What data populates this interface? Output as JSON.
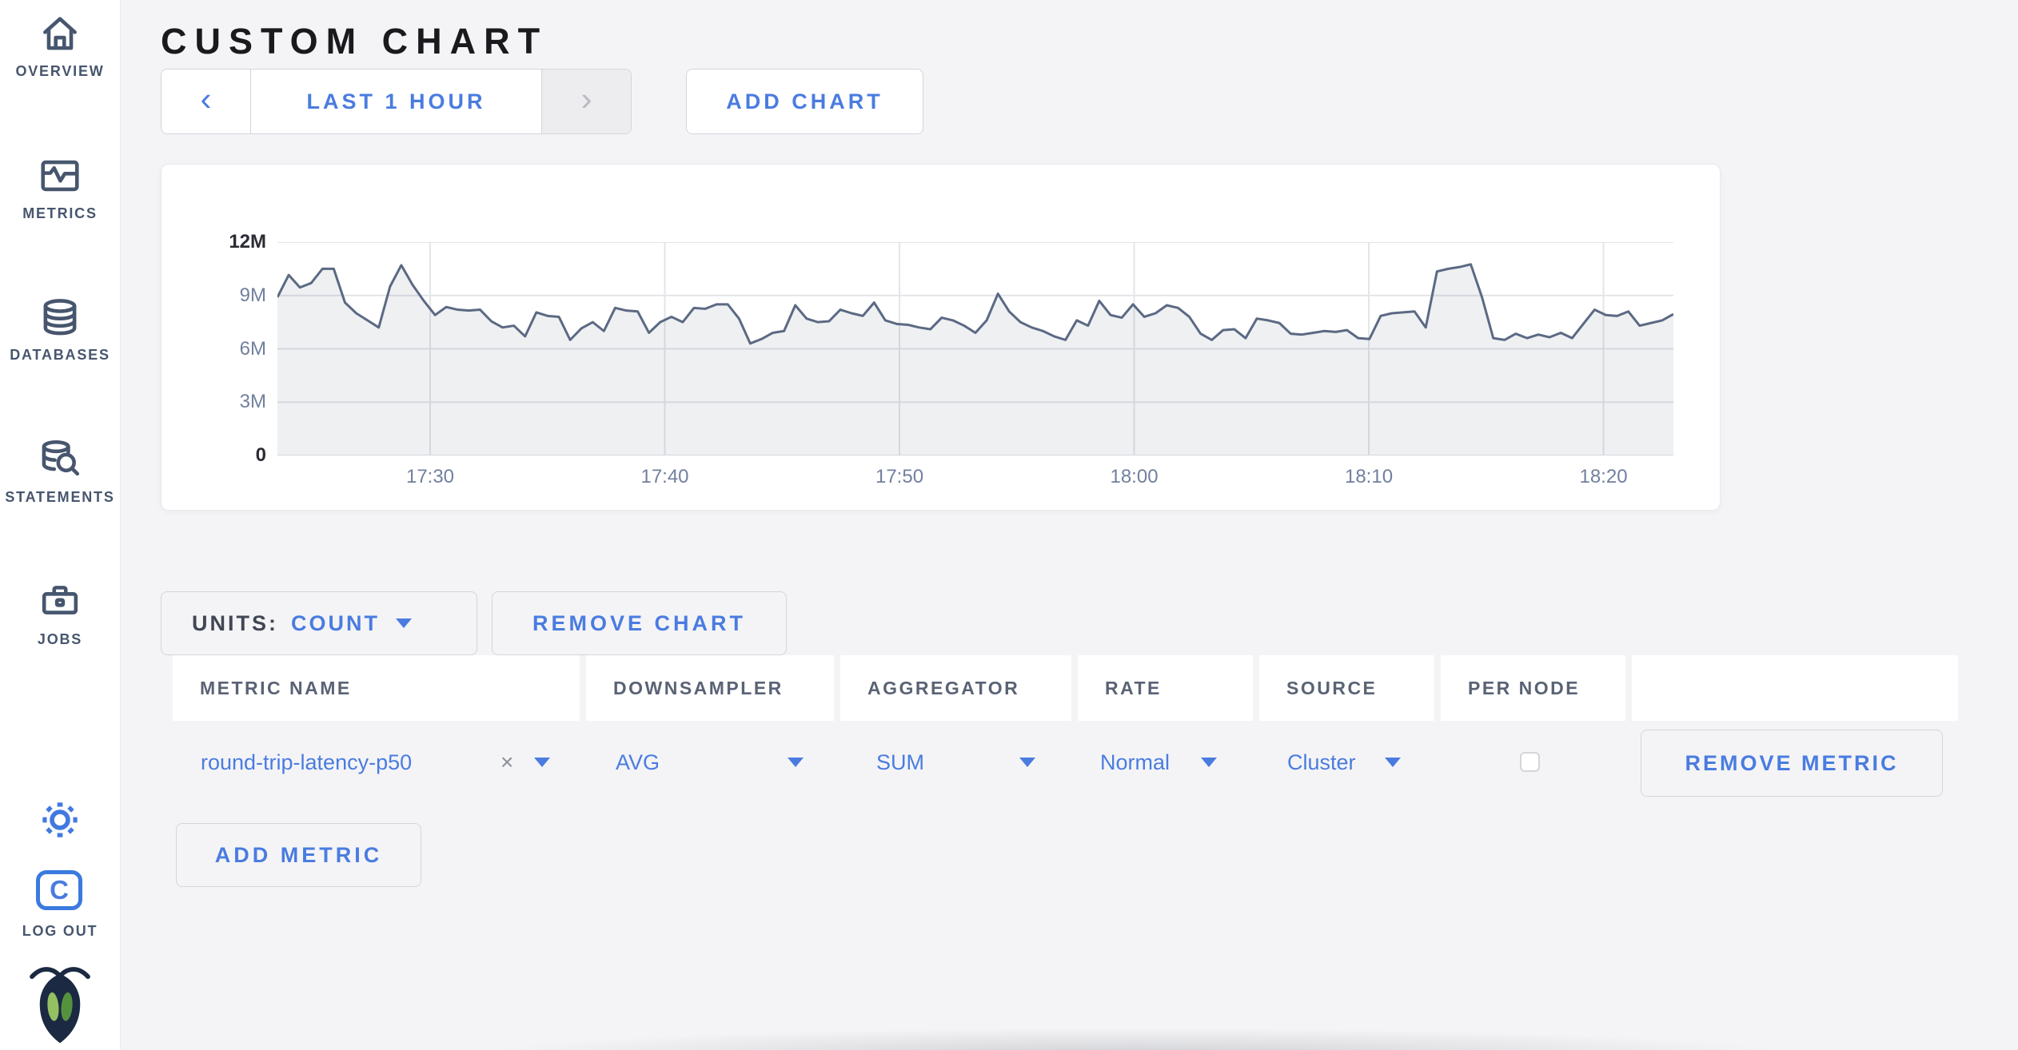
{
  "page": {
    "title": "CUSTOM CHART"
  },
  "sidebar": {
    "items": [
      {
        "label": "OVERVIEW",
        "icon": "home-icon"
      },
      {
        "label": "METRICS",
        "icon": "metrics-icon"
      },
      {
        "label": "DATABASES",
        "icon": "database-icon"
      },
      {
        "label": "STATEMENTS",
        "icon": "statements-icon"
      },
      {
        "label": "JOBS",
        "icon": "jobs-icon"
      }
    ],
    "settings_icon": "gear-icon",
    "logout": {
      "label": "LOG OUT",
      "monogram": "C"
    },
    "brand_icon": "cockroach-bug-logo"
  },
  "toolbar": {
    "prev_label": "‹",
    "time_range_label": "LAST 1 HOUR",
    "next_label": "›",
    "add_chart_label": "ADD CHART"
  },
  "chart_controls": {
    "units_label": "UNITS:",
    "units_value": "COUNT",
    "remove_chart_label": "REMOVE CHART",
    "add_metric_label": "ADD METRIC"
  },
  "metrics_table": {
    "columns": [
      "METRIC NAME",
      "DOWNSAMPLER",
      "AGGREGATOR",
      "RATE",
      "SOURCE",
      "PER NODE",
      ""
    ],
    "rows": [
      {
        "metric_name": "round-trip-latency-p50",
        "clear_label": "×",
        "downsampler": "AVG",
        "aggregator": "SUM",
        "rate": "Normal",
        "source": "Cluster",
        "per_node_checked": false,
        "remove_label": "REMOVE METRIC"
      }
    ]
  },
  "chart_data": {
    "type": "area",
    "series": [
      {
        "name": "round-trip-latency-p50",
        "unit": "count"
      }
    ],
    "x_start": "17:23",
    "x_end": "18:23",
    "x_ticks": [
      {
        "label": "17:30",
        "f": 0.1094
      },
      {
        "label": "17:40",
        "f": 0.2775
      },
      {
        "label": "17:50",
        "f": 0.4456
      },
      {
        "label": "18:00",
        "f": 0.6137
      },
      {
        "label": "18:10",
        "f": 0.7818
      },
      {
        "label": "18:20",
        "f": 0.9499
      }
    ],
    "y_ticks": [
      {
        "label": "0",
        "v": 0,
        "strong": true
      },
      {
        "label": "3M",
        "v": 3,
        "strong": false
      },
      {
        "label": "6M",
        "v": 6,
        "strong": false
      },
      {
        "label": "9M",
        "v": 9,
        "strong": false
      },
      {
        "label": "12M",
        "v": 12,
        "strong": true
      }
    ],
    "ylim_millions": [
      0,
      12
    ],
    "grid": true,
    "values_millions": [
      8.9,
      10.15,
      9.45,
      9.7,
      10.5,
      10.5,
      8.6,
      8.0,
      7.6,
      7.2,
      9.5,
      10.7,
      9.6,
      8.7,
      7.9,
      8.35,
      8.2,
      8.15,
      8.2,
      7.55,
      7.2,
      7.3,
      6.7,
      8.05,
      7.85,
      7.8,
      6.5,
      7.15,
      7.5,
      7.0,
      8.3,
      8.15,
      8.1,
      6.9,
      7.5,
      7.8,
      7.5,
      8.3,
      8.25,
      8.5,
      8.5,
      7.7,
      6.3,
      6.55,
      6.9,
      7.0,
      8.45,
      7.7,
      7.5,
      7.55,
      8.2,
      8.0,
      7.85,
      8.6,
      7.6,
      7.4,
      7.35,
      7.2,
      7.1,
      7.75,
      7.6,
      7.3,
      6.9,
      7.6,
      9.1,
      8.1,
      7.5,
      7.2,
      7.0,
      6.7,
      6.5,
      7.6,
      7.3,
      8.7,
      7.9,
      7.75,
      8.5,
      7.8,
      8.0,
      8.45,
      8.3,
      7.8,
      6.85,
      6.5,
      7.05,
      7.1,
      6.6,
      7.7,
      7.6,
      7.45,
      6.85,
      6.8,
      6.9,
      7.0,
      6.95,
      7.05,
      6.6,
      6.55,
      7.85,
      8.0,
      8.05,
      8.1,
      7.2,
      10.35,
      10.5,
      10.6,
      10.75,
      8.9,
      6.6,
      6.5,
      6.85,
      6.6,
      6.8,
      6.65,
      6.9,
      6.6,
      7.4,
      8.2,
      7.9,
      7.85,
      8.1,
      7.3,
      7.45,
      7.6,
      7.95
    ]
  },
  "colors": {
    "accent_blue": "#4a7ce0",
    "line": "#5b6983",
    "area_fill": "rgba(91,105,131,0.10)",
    "gridline": "#e3e5e9",
    "sidebar_slate": "#47566e",
    "logout_blue": "#1d1de0",
    "leaf_light": "#93c161",
    "leaf_dark": "#55923e",
    "bug_navy": "#1b2a42"
  }
}
